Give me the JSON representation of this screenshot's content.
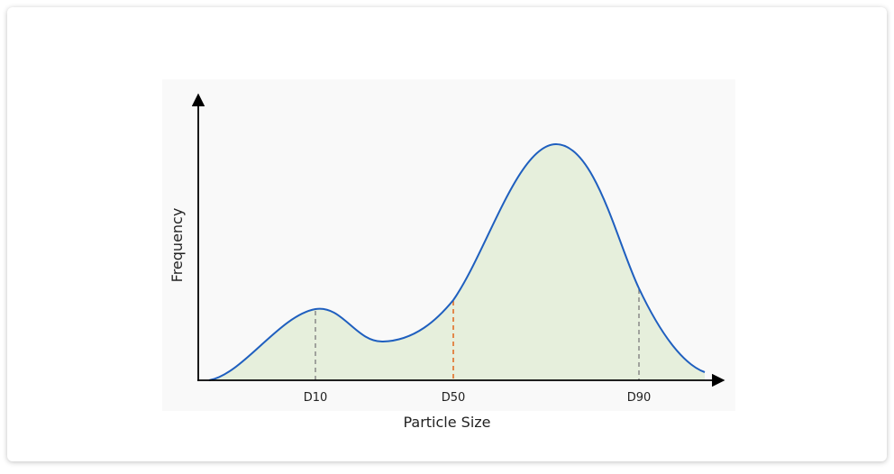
{
  "axes": {
    "y_label": "Frequency",
    "x_label": "Particle Size"
  },
  "markers": [
    {
      "label": "D10"
    },
    {
      "label": "D50"
    },
    {
      "label": "D90"
    }
  ]
}
